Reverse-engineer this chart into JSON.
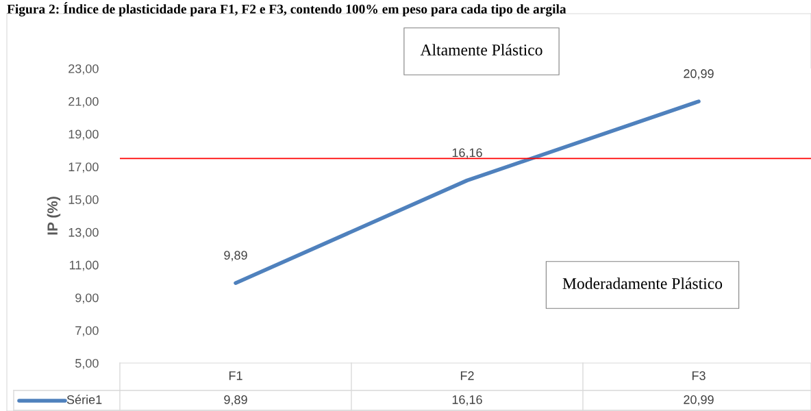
{
  "chart_data": {
    "type": "line",
    "title": "Figura 2: Índice de plasticidade para F1, F2 e F3, contendo 100% em peso para cada tipo de argila",
    "ylabel": "IP (%)",
    "categories": [
      "F1",
      "F2",
      "F3"
    ],
    "series": [
      {
        "name": "Série1",
        "color": "#4f81bd",
        "values": [
          9.89,
          16.16,
          20.99
        ]
      }
    ],
    "ylim": [
      5,
      23
    ],
    "yticks": [
      {
        "value": 5,
        "label": "5,00"
      },
      {
        "value": 7,
        "label": "7,00"
      },
      {
        "value": 9,
        "label": "9,00"
      },
      {
        "value": 11,
        "label": "11,00"
      },
      {
        "value": 13,
        "label": "13,00"
      },
      {
        "value": 15,
        "label": "15,00"
      },
      {
        "value": 17,
        "label": "17,00"
      },
      {
        "value": 19,
        "label": "19,00"
      },
      {
        "value": 21,
        "label": "21,00"
      },
      {
        "value": 23,
        "label": "23,00"
      }
    ],
    "ref_lines": [
      {
        "axis": "y",
        "value": 17.5,
        "color": "#ff0000"
      }
    ],
    "annotations": [
      "Altamente Plástico",
      "Moderadamente Plástico"
    ],
    "value_labels": [
      "9,89",
      "16,16",
      "20,99"
    ],
    "legend": "bottom",
    "grid": false,
    "marker": "none",
    "line_style": "solid"
  }
}
